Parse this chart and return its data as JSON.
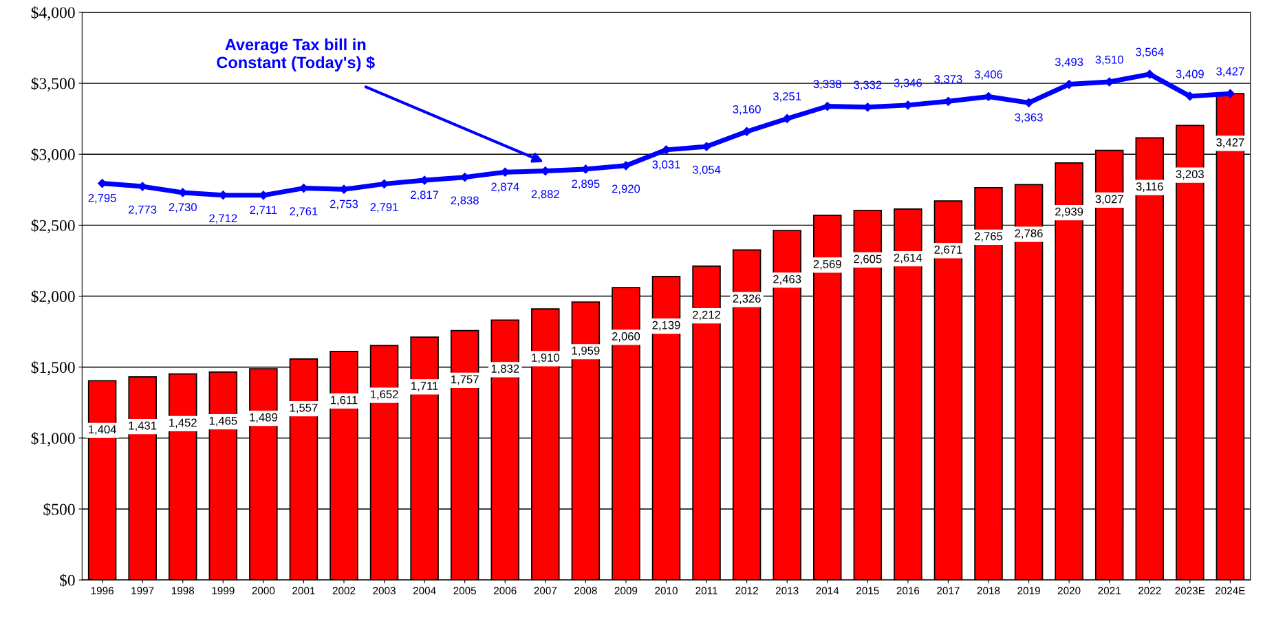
{
  "chart_data": {
    "type": "bar",
    "categories": [
      "1996",
      "1997",
      "1998",
      "1999",
      "2000",
      "2001",
      "2002",
      "2003",
      "2004",
      "2005",
      "2006",
      "2007",
      "2008",
      "2009",
      "2010",
      "2011",
      "2012",
      "2013",
      "2014",
      "2015",
      "2016",
      "2017",
      "2018",
      "2019",
      "2020",
      "2021",
      "2022",
      "2023E",
      "2024E"
    ],
    "series": [
      {
        "color": "#ff0000",
        "values": [
          1404,
          1431,
          1452,
          1465,
          1489,
          1557,
          1611,
          1652,
          1711,
          1757,
          1832,
          1910,
          1959,
          2060,
          2139,
          2212,
          2326,
          2463,
          2569,
          2605,
          2614,
          2671,
          2765,
          2786,
          2939,
          3027,
          3116,
          3203,
          3427
        ],
        "value_labels": [
          "1,404",
          "1,431",
          "1,452",
          "1,465",
          "1,489",
          "1,557",
          "1,611",
          "1,652",
          "1,711",
          "1,757",
          "1,832",
          "1,910",
          "1,959",
          "2,060",
          "2,139",
          "2,212",
          "2,326",
          "2,463",
          "2,569",
          "2,605",
          "2,614",
          "2,671",
          "2,765",
          "2,786",
          "2,939",
          "3,027",
          "3,116",
          "3,203",
          "3,427"
        ]
      },
      {
        "type": "line",
        "color": "#0000ff",
        "marker": "diamond",
        "line_style": "solid",
        "values": [
          2795,
          2773,
          2730,
          2712,
          2711,
          2761,
          2753,
          2791,
          2817,
          2838,
          2874,
          2882,
          2895,
          2920,
          3031,
          3054,
          3160,
          3251,
          3338,
          3332,
          3346,
          3373,
          3406,
          3363,
          3493,
          3510,
          3564,
          3409,
          3427
        ],
        "value_labels": [
          "2,795",
          "2,773",
          "2,730",
          "2,712",
          "2,711",
          "2,761",
          "2,753",
          "2,791",
          "2,817",
          "2,838",
          "2,874",
          "2,882",
          "2,895",
          "2,920",
          "3,031",
          "3,054",
          "3,160",
          "3,251",
          "3,338",
          "3,332",
          "3,346",
          "3,373",
          "3,406",
          "3,363",
          "3,493",
          "3,510",
          "3,564",
          "3,409",
          "3,427"
        ]
      }
    ],
    "ylim": [
      0,
      4000
    ],
    "yticks": [
      {
        "value": 0,
        "label": "$0"
      },
      {
        "value": 500,
        "label": "$500"
      },
      {
        "value": 1000,
        "label": "$1,000"
      },
      {
        "value": 1500,
        "label": "$1,500"
      },
      {
        "value": 2000,
        "label": "$2,000"
      },
      {
        "value": 2500,
        "label": "$2,500"
      },
      {
        "value": 3000,
        "label": "$3,000"
      },
      {
        "value": 3500,
        "label": "$3,500"
      },
      {
        "value": 4000,
        "label": "$4,000"
      }
    ],
    "grid": "y",
    "legend": false,
    "annotations": [
      "Average Tax bill in\nConstant (Today's) $"
    ]
  }
}
